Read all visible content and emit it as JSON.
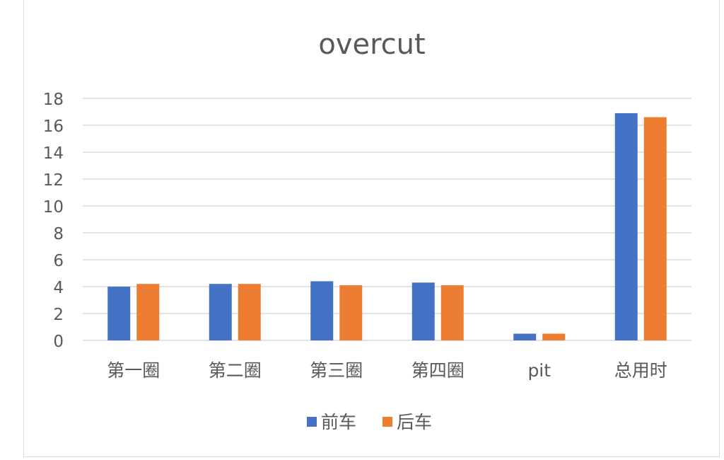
{
  "chart_data": {
    "type": "bar",
    "title": "overcut",
    "categories": [
      "第一圈",
      "第二圈",
      "第三圈",
      "第四圈",
      "pit",
      "总用时"
    ],
    "series": [
      {
        "name": "前车",
        "values": [
          4.0,
          4.2,
          4.4,
          4.3,
          0.5,
          16.9
        ],
        "color": "#4472C4"
      },
      {
        "name": "后车",
        "values": [
          4.2,
          4.2,
          4.1,
          4.1,
          0.5,
          16.6
        ],
        "color": "#ED7D31"
      }
    ],
    "ylim": [
      0,
      18
    ],
    "yticks": [
      0,
      2,
      4,
      6,
      8,
      10,
      12,
      14,
      16,
      18
    ],
    "grid": true,
    "legend_position": "bottom"
  }
}
